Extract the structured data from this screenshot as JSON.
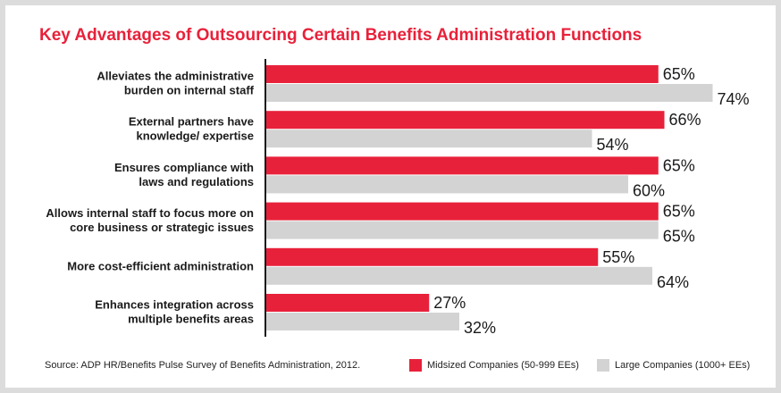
{
  "chart_data": {
    "type": "bar",
    "orientation": "horizontal",
    "title": "Key Advantages of Outsourcing Certain Benefits Administration Functions",
    "categories": [
      [
        "Alleviates the administrative",
        "burden on internal staff"
      ],
      [
        "External partners have",
        "knowledge/ expertise"
      ],
      [
        "Ensures compliance with",
        "laws and regulations"
      ],
      [
        "Allows internal staff to focus more on",
        "core business or strategic issues"
      ],
      [
        "More cost-efficient administration"
      ],
      [
        "Enhances integration across",
        "multiple benefits areas"
      ]
    ],
    "series": [
      {
        "name": "Midsized Companies (50-999 EEs)",
        "color": "#e8213a",
        "values": [
          65,
          66,
          65,
          65,
          55,
          27
        ]
      },
      {
        "name": "Large Companies (1000+ EEs)",
        "color": "#d3d3d3",
        "values": [
          74,
          54,
          60,
          65,
          64,
          32
        ]
      }
    ],
    "value_suffix": "%",
    "xlim": [
      0,
      100
    ],
    "legend_position": "bottom-right",
    "grid": false,
    "source": "Source: ADP HR/Benefits Pulse Survey of Benefits Administration, 2012."
  }
}
